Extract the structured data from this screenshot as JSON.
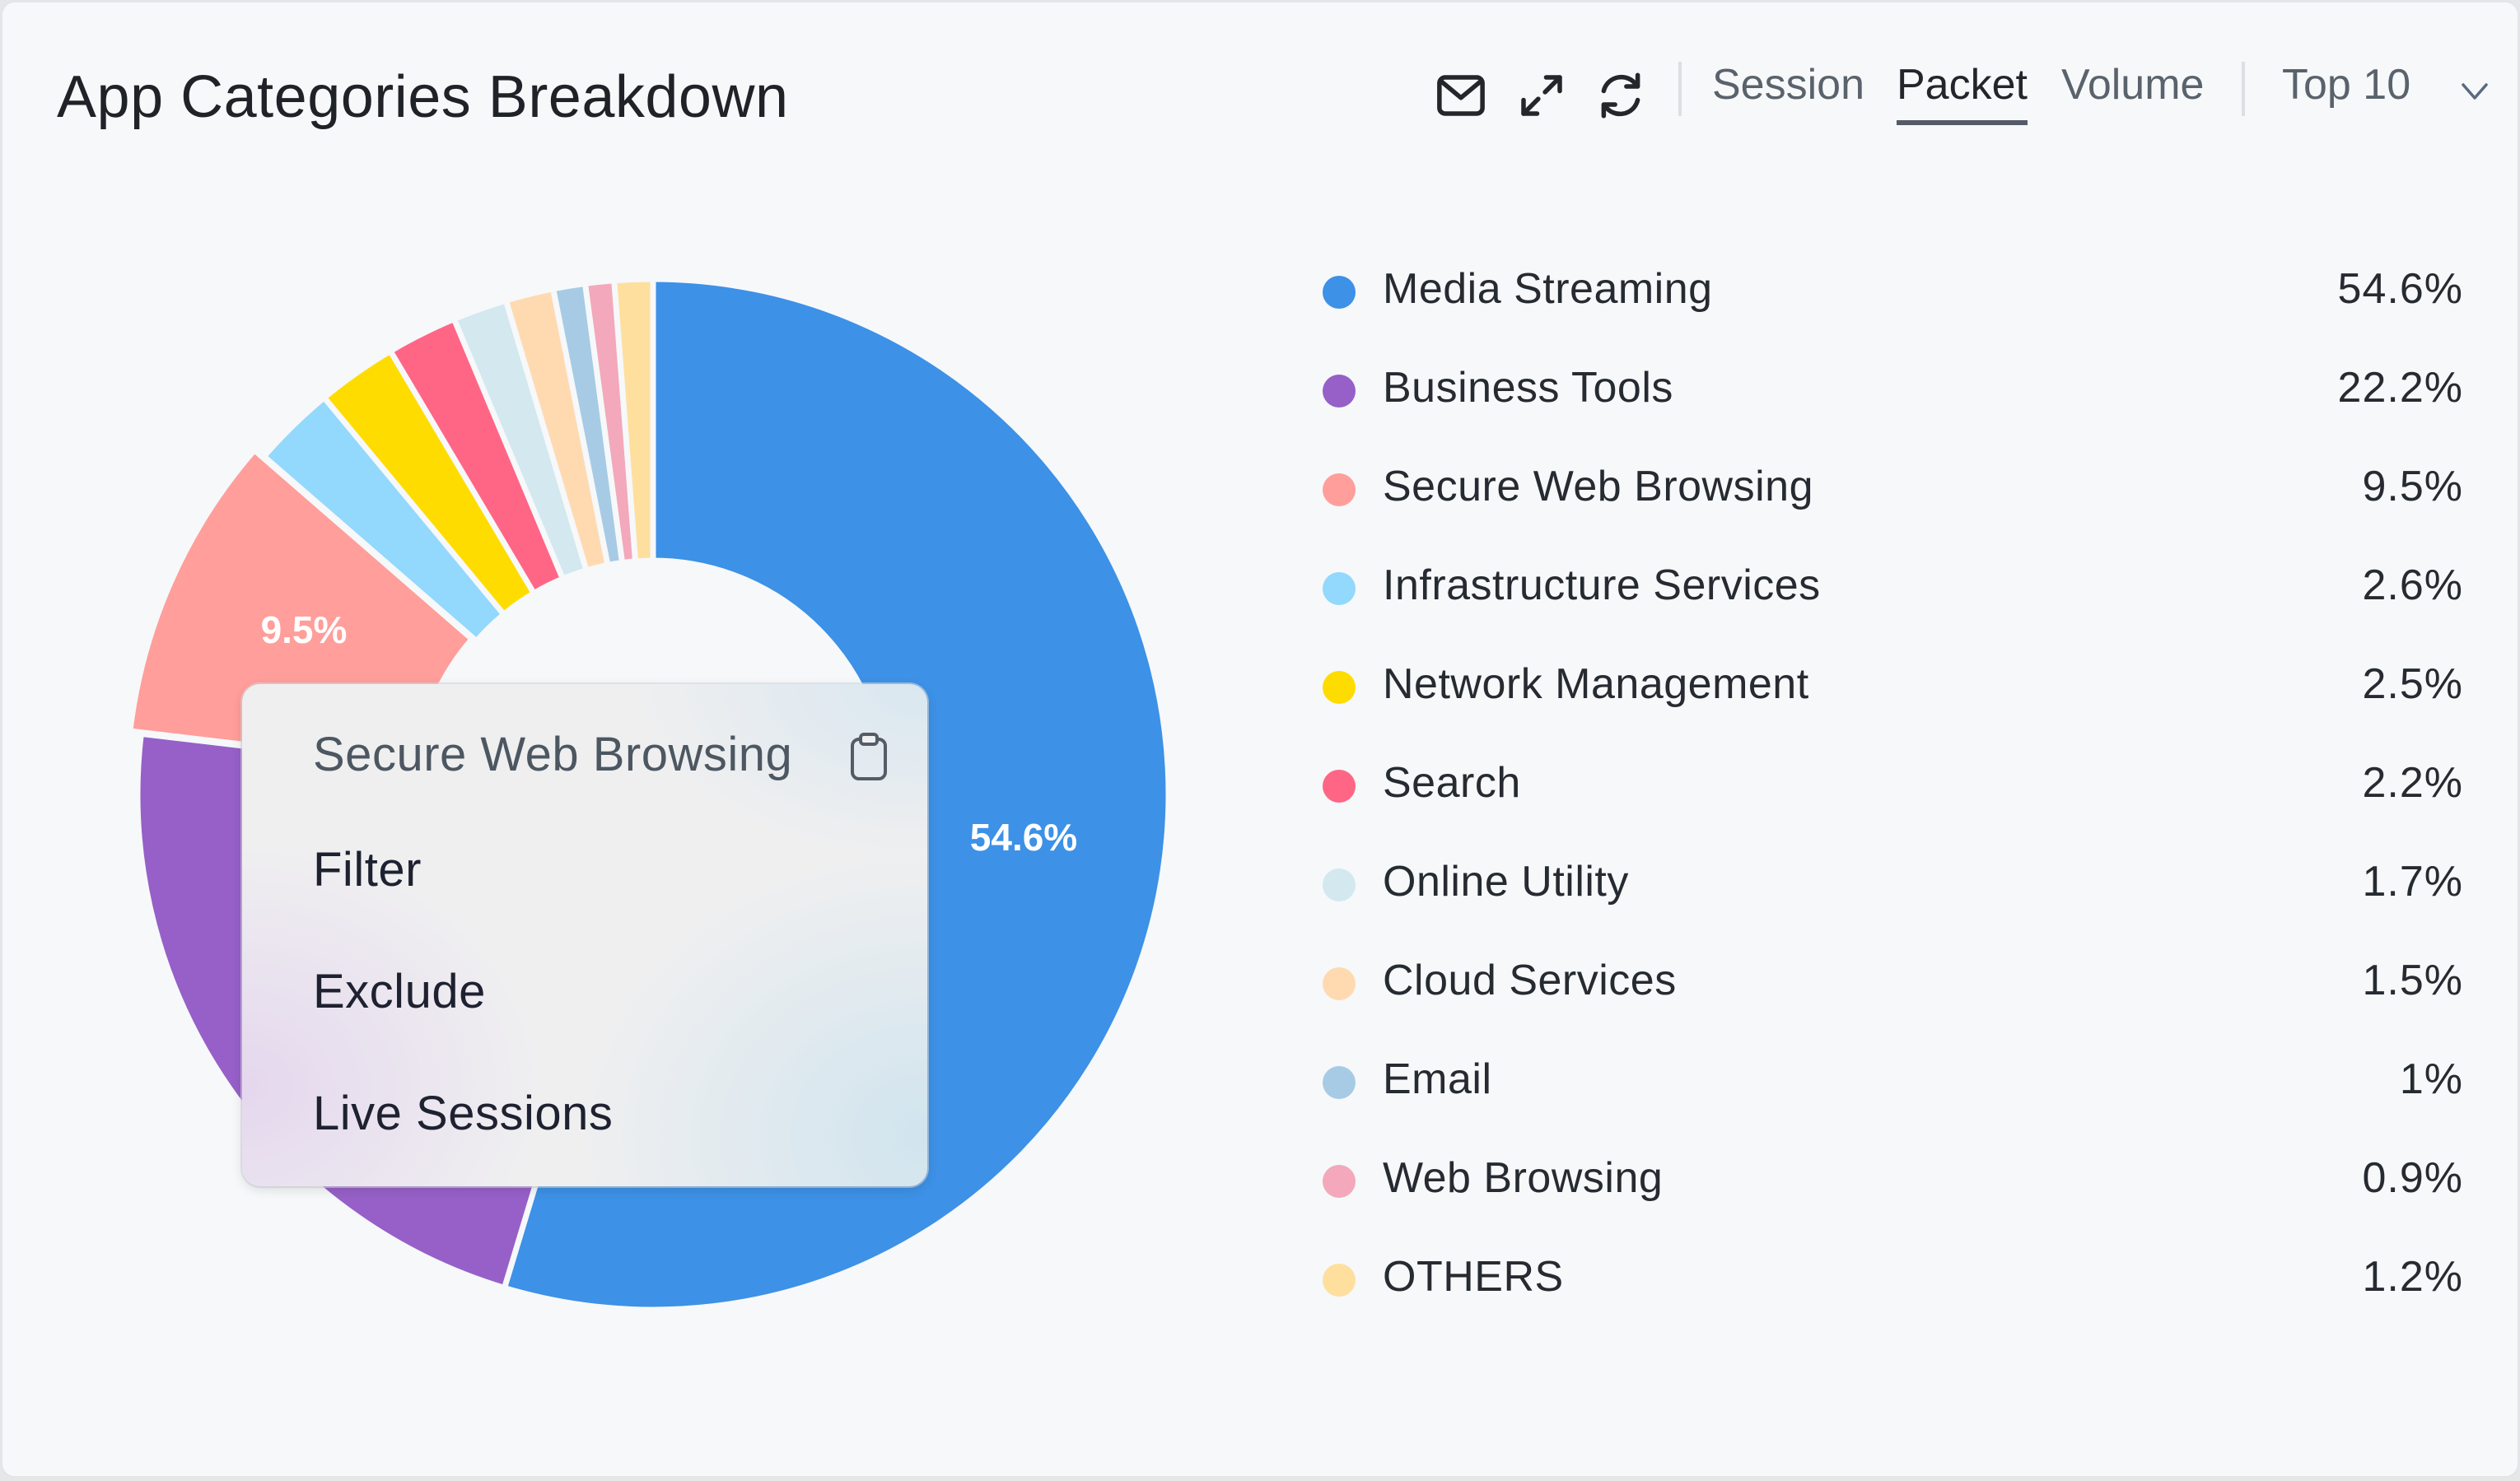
{
  "header": {
    "title": "App Categories Breakdown",
    "icons": [
      "mail-icon",
      "expand-icon",
      "refresh-icon"
    ],
    "tabs": [
      {
        "label": "Session",
        "active": false
      },
      {
        "label": "Packet",
        "active": true
      },
      {
        "label": "Volume",
        "active": false
      }
    ],
    "top_select": {
      "value": "Top 10"
    }
  },
  "legend": {
    "items": [
      {
        "name": "Media Streaming",
        "value": "54.6%",
        "color": "#3d91e6"
      },
      {
        "name": "Business Tools",
        "value": "22.2%",
        "color": "#9660c8"
      },
      {
        "name": "Secure Web Browsing",
        "value": "9.5%",
        "color": "#ff9e9a"
      },
      {
        "name": "Infrastructure Services",
        "value": "2.6%",
        "color": "#93d8fd"
      },
      {
        "name": "Network Management",
        "value": "2.5%",
        "color": "#ffdc00"
      },
      {
        "name": "Search",
        "value": "2.2%",
        "color": "#ff6686"
      },
      {
        "name": "Online Utility",
        "value": "1.7%",
        "color": "#d3e8ef"
      },
      {
        "name": "Cloud Services",
        "value": "1.5%",
        "color": "#ffdab1"
      },
      {
        "name": "Email",
        "value": "1%",
        "color": "#a7cbe5"
      },
      {
        "name": "Web Browsing",
        "value": "0.9%",
        "color": "#f3a8bb"
      },
      {
        "name": "OTHERS",
        "value": "1.2%",
        "color": "#ffdf9e"
      }
    ]
  },
  "donut_labels": {
    "media_streaming": "54.6%",
    "secure_web_browsing": "9.5%"
  },
  "context_menu": {
    "title": "Secure Web Browsing",
    "copy_icon": "clipboard-icon",
    "items": [
      "Filter",
      "Exclude",
      "Live Sessions"
    ]
  },
  "chart_data": {
    "type": "pie",
    "title": "App Categories Breakdown",
    "subtitle": "Packet",
    "categories": [
      "Media Streaming",
      "Business Tools",
      "Secure Web Browsing",
      "Infrastructure Services",
      "Network Management",
      "Search",
      "Online Utility",
      "Cloud Services",
      "Email",
      "Web Browsing",
      "OTHERS"
    ],
    "values": [
      54.6,
      22.2,
      9.5,
      2.6,
      2.5,
      2.2,
      1.7,
      1.5,
      1.0,
      0.9,
      1.2
    ],
    "colors": [
      "#3d91e6",
      "#9660c8",
      "#ff9e9a",
      "#93d8fd",
      "#ffdc00",
      "#ff6686",
      "#d3e8ef",
      "#ffdab1",
      "#a7cbe5",
      "#f3a8bb",
      "#ffdf9e"
    ],
    "donut": true,
    "start_angle": "top, clockwise",
    "data_labels_shown": {
      "Media Streaming": "54.6%",
      "Secure Web Browsing": "9.5%"
    },
    "highlighted": "Secure Web Browsing",
    "legend_position": "right"
  }
}
